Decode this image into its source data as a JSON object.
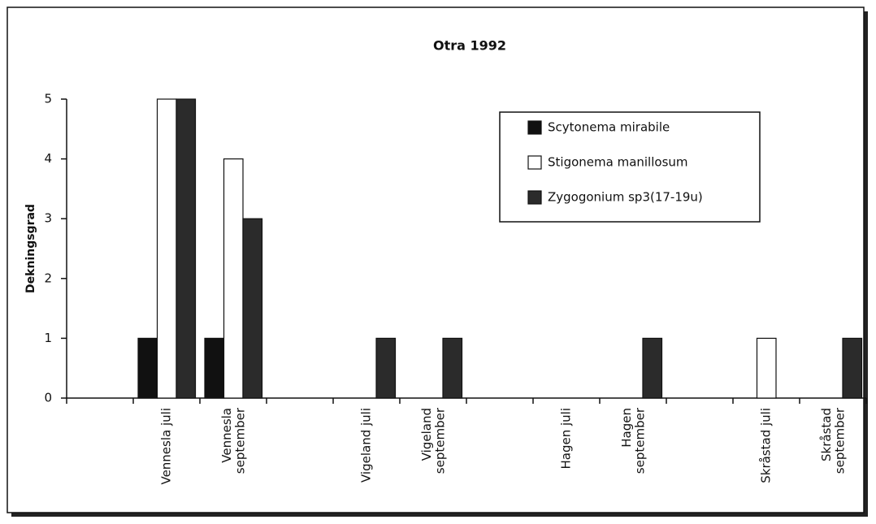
{
  "chart_data": {
    "type": "bar",
    "title": "Otra 1992",
    "y_label": "Dekningsgrad",
    "categories": [
      null,
      "Vennesla juli",
      "Vennesla\nseptember",
      null,
      "Vigeland juli",
      "Vigeland\nseptember",
      null,
      "Hagen juli",
      "Hagen\nseptember",
      null,
      "Skråstad juli",
      "Skråstad\nseptember"
    ],
    "series": [
      {
        "name": "Scytonema mirabile",
        "color": "#111111",
        "values": [
          null,
          1,
          1,
          null,
          null,
          null,
          null,
          null,
          null,
          null,
          null,
          null
        ]
      },
      {
        "name": "Stigonema manillosum",
        "color": "#ffffff",
        "values": [
          null,
          5,
          4,
          null,
          null,
          null,
          null,
          null,
          null,
          null,
          1,
          null
        ]
      },
      {
        "name": "Zygogonium sp3(17-19u)",
        "color": "#2b2b2b",
        "values": [
          null,
          5,
          3,
          null,
          1,
          1,
          null,
          null,
          1,
          null,
          null,
          1
        ]
      }
    ],
    "ylim": [
      0,
      5
    ],
    "yticks": [
      0,
      1,
      2,
      3,
      4,
      5
    ]
  }
}
